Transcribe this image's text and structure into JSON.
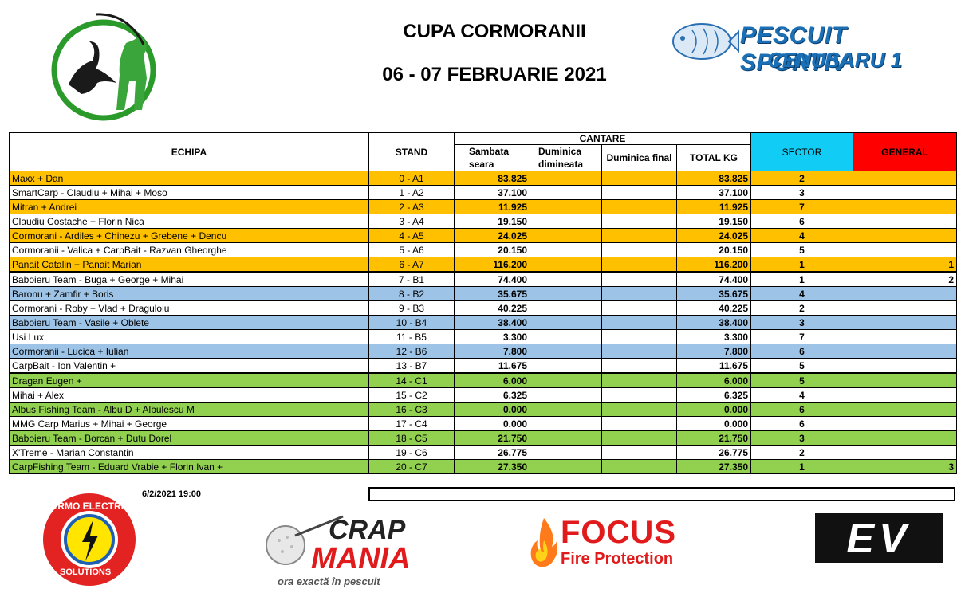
{
  "header": {
    "title": "CUPA CORMORANII",
    "dates": "06 - 07 FEBRUARIE 2021",
    "brand_line1": "PESCUIT SPORTIV",
    "brand_line2": "CENUSARU 1"
  },
  "table": {
    "col_echipa": "ECHIPA",
    "col_stand": "STAND",
    "col_cantare": "CANTARE",
    "col_sambata": "Sambata seara",
    "col_duminica_dim": "Duminica dimineata",
    "col_duminica_final": "Duminica final",
    "col_total": "TOTAL KG",
    "col_sector": "SECTOR",
    "col_general": "GENERAL",
    "rows": [
      {
        "echipa": "Maxx + Dan",
        "stand": "0 - A1",
        "sambata": "83.825",
        "dim": "",
        "final": "",
        "total": "83.825",
        "sector": "2",
        "general": ""
      },
      {
        "echipa": "SmartCarp - Claudiu + Mihai + Moso",
        "stand": "1 - A2",
        "sambata": "37.100",
        "dim": "",
        "final": "",
        "total": "37.100",
        "sector": "3",
        "general": ""
      },
      {
        "echipa": "Mitran + Andrei",
        "stand": "2 - A3",
        "sambata": "11.925",
        "dim": "",
        "final": "",
        "total": "11.925",
        "sector": "7",
        "general": ""
      },
      {
        "echipa": "Claudiu Costache + Florin Nica",
        "stand": "3 - A4",
        "sambata": "19.150",
        "dim": "",
        "final": "",
        "total": "19.150",
        "sector": "6",
        "general": ""
      },
      {
        "echipa": "Cormorani - Ardiles + Chinezu + Grebene + Dencu",
        "stand": "4 - A5",
        "sambata": "24.025",
        "dim": "",
        "final": "",
        "total": "24.025",
        "sector": "4",
        "general": ""
      },
      {
        "echipa": "Cormoranii - Valica + CarpBait - Razvan Gheorghe",
        "stand": "5 - A6",
        "sambata": "20.150",
        "dim": "",
        "final": "",
        "total": "20.150",
        "sector": "5",
        "general": ""
      },
      {
        "echipa": "Panait Catalin + Panait Marian",
        "stand": "6 - A7",
        "sambata": "116.200",
        "dim": "",
        "final": "",
        "total": "116.200",
        "sector": "1",
        "general": "1"
      },
      {
        "echipa": "Baboieru Team - Buga + George + Mihai",
        "stand": "7 - B1",
        "sambata": "74.400",
        "dim": "",
        "final": "",
        "total": "74.400",
        "sector": "1",
        "general": "2"
      },
      {
        "echipa": "Baronu + Zamfir + Boris",
        "stand": "8 - B2",
        "sambata": "35.675",
        "dim": "",
        "final": "",
        "total": "35.675",
        "sector": "4",
        "general": ""
      },
      {
        "echipa": "Cormorani - Roby + Vlad + Draguloiu",
        "stand": "9 - B3",
        "sambata": "40.225",
        "dim": "",
        "final": "",
        "total": "40.225",
        "sector": "2",
        "general": ""
      },
      {
        "echipa": "Baboieru Team - Vasile + Oblete",
        "stand": "10 - B4",
        "sambata": "38.400",
        "dim": "",
        "final": "",
        "total": "38.400",
        "sector": "3",
        "general": ""
      },
      {
        "echipa": "Usi Lux",
        "stand": "11 - B5",
        "sambata": "3.300",
        "dim": "",
        "final": "",
        "total": "3.300",
        "sector": "7",
        "general": ""
      },
      {
        "echipa": "Cormoranii - Lucica + Iulian",
        "stand": "12 - B6",
        "sambata": "7.800",
        "dim": "",
        "final": "",
        "total": "7.800",
        "sector": "6",
        "general": ""
      },
      {
        "echipa": "CarpBait - Ion Valentin +",
        "stand": "13 - B7",
        "sambata": "11.675",
        "dim": "",
        "final": "",
        "total": "11.675",
        "sector": "5",
        "general": ""
      },
      {
        "echipa": "Dragan Eugen +",
        "stand": "14 - C1",
        "sambata": "6.000",
        "dim": "",
        "final": "",
        "total": "6.000",
        "sector": "5",
        "general": ""
      },
      {
        "echipa": "Mihai + Alex",
        "stand": "15 - C2",
        "sambata": "6.325",
        "dim": "",
        "final": "",
        "total": "6.325",
        "sector": "4",
        "general": ""
      },
      {
        "echipa": "Albus Fishing Team - Albu D + Albulescu M",
        "stand": "16 - C3",
        "sambata": "0.000",
        "dim": "",
        "final": "",
        "total": "0.000",
        "sector": "6",
        "general": ""
      },
      {
        "echipa": "MMG Carp Marius + Mihai + George",
        "stand": "17 - C4",
        "sambata": "0.000",
        "dim": "",
        "final": "",
        "total": "0.000",
        "sector": "6",
        "general": ""
      },
      {
        "echipa": "Baboieru Team - Borcan + Dutu Dorel",
        "stand": "18 - C5",
        "sambata": "21.750",
        "dim": "",
        "final": "",
        "total": "21.750",
        "sector": "3",
        "general": ""
      },
      {
        "echipa": "X'Treme - Marian Constantin",
        "stand": "19 - C6",
        "sambata": "26.775",
        "dim": "",
        "final": "",
        "total": "26.775",
        "sector": "2",
        "general": ""
      },
      {
        "echipa": "CarpFishing Team - Eduard Vrabie + Florin Ivan +",
        "stand": "20 - C7",
        "sambata": "27.350",
        "dim": "",
        "final": "",
        "total": "27.350",
        "sector": "1",
        "general": "3"
      }
    ]
  },
  "footer": {
    "timestamp": "6/2/2021 19:00",
    "sponsor1_top": "TERMO ELECTRIC",
    "sponsor1_bottom": "SOLUTIONS",
    "sponsor2_name_a": "CRAP",
    "sponsor2_name_b": "MANIA",
    "sponsor2_tagline": "ora exactă în pescuit",
    "sponsor3_name": "FOCUS",
    "sponsor3_sub": "Fire Protection",
    "sponsor4_name": "EV"
  },
  "colors": {
    "sector_a": "#ffc000",
    "sector_b": "#9dc3e6",
    "sector_c": "#92d050",
    "sector_header": "#11ccf5",
    "general_header": "#ff0000"
  }
}
